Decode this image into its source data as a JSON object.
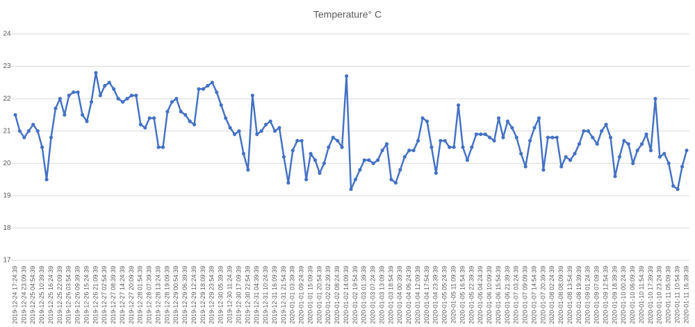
{
  "chart_data": {
    "type": "line",
    "title": "Temperature° C",
    "categories": [
      "2019-12-24 17:24:39",
      null,
      "2019-12-24 23:09:39",
      null,
      "2019-12-25 04:54:39",
      null,
      "2019-12-25 10:39:39",
      null,
      "2019-12-25 16:24:39",
      null,
      "2019-12-25 22:09:39",
      null,
      "2019-12-26 03:54:39",
      null,
      "2019-12-26 09:39:39",
      null,
      "2019-12-26 15:24:39",
      null,
      "2019-12-26 21:09:39",
      null,
      "2019-12-27 02:54:39",
      null,
      "2019-12-27 08:39:39",
      null,
      "2019-12-27 14:24:39",
      null,
      "2019-12-27 20:09:39",
      null,
      "2019-12-28 01:54:39",
      null,
      "2019-12-28 07:39:39",
      null,
      "2019-12-28 13:24:39",
      null,
      "2019-12-28 19:09:39",
      null,
      "2019-12-29 00:54:39",
      null,
      "2019-12-29 06:39:39",
      null,
      "2019-12-29 12:24:39",
      null,
      "2019-12-29 18:09:39",
      null,
      "2019-12-29 23:54:39",
      null,
      "2019-12-30 05:39:39",
      null,
      "2019-12-30 11:24:39",
      null,
      "2019-12-30 17:09:39",
      null,
      "2019-12-30 22:54:39",
      null,
      "2019-12-31 04:39:39",
      null,
      "2019-12-31 10:24:39",
      null,
      "2019-12-31 16:09:39",
      null,
      "2019-12-31 21:54:39",
      null,
      "2020-01-01 03:39:39",
      null,
      "2020-01-01 09:24:39",
      null,
      "2020-01-01 15:09:39",
      null,
      "2020-01-01 20:54:39",
      null,
      "2020-01-02 02:39:39",
      null,
      "2020-01-02 08:24:39",
      null,
      "2020-01-02 14:09:39",
      null,
      "2020-01-02 19:54:39",
      null,
      "2020-01-03 01:39:39",
      null,
      "2020-01-03 07:24:39",
      null,
      "2020-01-03 13:09:39",
      null,
      "2020-01-03 18:54:39",
      null,
      "2020-01-04 00:39:39",
      null,
      "2020-01-04 06:24:39",
      null,
      "2020-01-04 12:09:39",
      null,
      "2020-01-04 17:54:39",
      null,
      "2020-01-04 23:39:39",
      null,
      "2020-01-05 05:24:39",
      null,
      "2020-01-05 11:09:39",
      null,
      "2020-01-05 16:54:39",
      null,
      "2020-01-05 22:39:39",
      null,
      "2020-01-06 04:24:39",
      null,
      "2020-01-06 10:09:39",
      null,
      "2020-01-06 15:54:39",
      null,
      "2020-01-06 21:39:39",
      null,
      "2020-01-07 03:24:39",
      null,
      "2020-01-07 09:09:39",
      null,
      "2020-01-07 14:54:39",
      null,
      "2020-01-07 20:39:39",
      null,
      "2020-01-08 02:24:39",
      null,
      "2020-01-08 08:09:39",
      null,
      "2020-01-08 13:54:39",
      null,
      "2020-01-08 19:39:39",
      null,
      "2020-01-09 01:24:39",
      null,
      "2020-01-09 07:09:39",
      null,
      "2020-01-09 12:54:39",
      null,
      "2020-01-09 18:39:39",
      null,
      "2020-01-10 00:24:39",
      null,
      "2020-01-10 06:09:39",
      null,
      "2020-01-10 11:54:39",
      null,
      "2020-01-10 17:39:39",
      null,
      "2020-01-10 23:24:39",
      null,
      "2020-01-11 05:09:39",
      null,
      "2020-01-11 10:54:39",
      null,
      "2020-01-11 16:39:39"
    ],
    "values": [
      21.5,
      21.0,
      20.8,
      21.0,
      21.2,
      21.0,
      20.5,
      19.5,
      20.8,
      21.7,
      22.0,
      21.5,
      22.1,
      22.2,
      22.2,
      21.5,
      21.3,
      21.9,
      22.8,
      22.1,
      22.4,
      22.5,
      22.3,
      22.0,
      21.9,
      22.0,
      22.1,
      22.1,
      21.2,
      21.1,
      21.4,
      21.4,
      20.5,
      20.5,
      21.6,
      21.9,
      22.0,
      21.6,
      21.5,
      21.3,
      21.2,
      22.3,
      22.3,
      22.4,
      22.5,
      22.2,
      21.8,
      21.4,
      21.1,
      20.9,
      21.0,
      20.3,
      19.8,
      22.1,
      20.9,
      21.0,
      21.2,
      21.3,
      21.0,
      21.1,
      20.2,
      19.4,
      20.4,
      20.7,
      20.7,
      19.5,
      20.3,
      20.1,
      19.7,
      20.0,
      20.5,
      20.8,
      20.7,
      20.5,
      22.7,
      19.2,
      19.5,
      19.8,
      20.1,
      20.1,
      20.0,
      20.1,
      20.4,
      20.6,
      19.5,
      19.4,
      19.8,
      20.2,
      20.4,
      20.4,
      20.7,
      21.4,
      21.3,
      20.5,
      19.7,
      20.7,
      20.7,
      20.5,
      20.5,
      21.8,
      20.5,
      20.1,
      20.5,
      20.9,
      20.9,
      20.9,
      20.8,
      20.7,
      21.4,
      20.8,
      21.3,
      21.1,
      20.8,
      20.3,
      19.9,
      20.7,
      21.1,
      21.4,
      19.8,
      20.8,
      20.8,
      20.8,
      19.9,
      20.2,
      20.1,
      20.3,
      20.6,
      21.0,
      21.0,
      20.8,
      20.6,
      21.0,
      21.2,
      20.8,
      19.6,
      20.2,
      20.7,
      20.6,
      20.0,
      20.4,
      20.6,
      20.9,
      20.4,
      22.0,
      20.2,
      20.3,
      20.0,
      19.3,
      19.2,
      19.9,
      20.4
    ],
    "color": "#4472c4",
    "ylim": [
      17,
      24
    ],
    "yticks": [
      17,
      18,
      19,
      20,
      21,
      22,
      23,
      24
    ],
    "grid": true,
    "markers": true
  }
}
